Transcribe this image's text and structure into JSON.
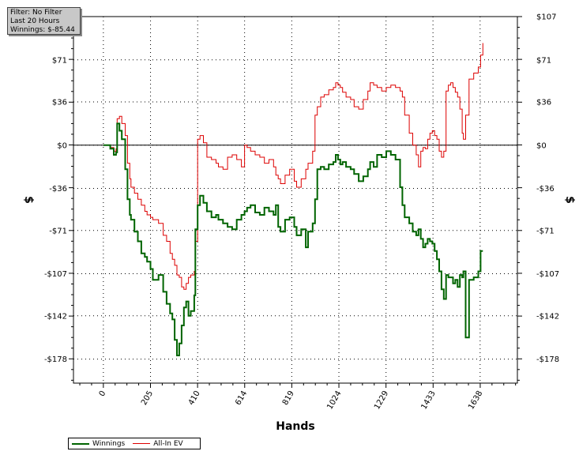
{
  "info": {
    "filter": "Filter: No Filter",
    "period": "Last  20 Hours",
    "winnings": "Winnings: $-85.44"
  },
  "colors": {
    "winnings": "#006400",
    "allin_ev": "#dd0000",
    "zero_line": "#000000"
  },
  "chart_data": {
    "type": "line",
    "title": "",
    "xlabel": "Hands",
    "ylabel": "$",
    "xlim": [
      -130,
      1800
    ],
    "ylim": [
      -198,
      107
    ],
    "x_ticks": [
      0,
      205,
      410,
      614,
      819,
      1024,
      1229,
      1433,
      1638
    ],
    "x_tick_labels": [
      "0",
      "205",
      "410",
      "614",
      "819",
      "1024",
      "1229",
      "1433",
      "1638"
    ],
    "y_ticks": [
      107,
      71,
      36,
      0,
      -36,
      -71,
      -107,
      -142,
      -178
    ],
    "y_tick_labels": [
      "$107",
      "$71",
      "$36",
      "$0",
      "-$36",
      "-$71",
      "-$107",
      "-$142",
      "-$178"
    ],
    "grid": true,
    "legend_position": "bottom-left",
    "series": [
      {
        "name": "Winnings",
        "x": [
          0,
          30,
          45,
          55,
          60,
          70,
          80,
          95,
          105,
          115,
          120,
          135,
          150,
          165,
          180,
          190,
          205,
          215,
          240,
          260,
          275,
          290,
          300,
          310,
          320,
          330,
          340,
          350,
          360,
          370,
          380,
          395,
          400,
          410,
          420,
          435,
          450,
          470,
          490,
          500,
          520,
          540,
          560,
          580,
          600,
          614,
          625,
          640,
          660,
          680,
          700,
          720,
          740,
          750,
          760,
          770,
          790,
          810,
          830,
          840,
          860,
          880,
          890,
          910,
          920,
          930,
          945,
          960,
          980,
          1000,
          1010,
          1020,
          1030,
          1040,
          1055,
          1075,
          1090,
          1110,
          1130,
          1150,
          1160,
          1175,
          1190,
          1210,
          1230,
          1250,
          1270,
          1290,
          1300,
          1310,
          1330,
          1345,
          1360,
          1370,
          1380,
          1390,
          1400,
          1410,
          1420,
          1430,
          1440,
          1450,
          1460,
          1470,
          1480,
          1490,
          1500,
          1510,
          1520,
          1530,
          1540,
          1550,
          1560,
          1565,
          1575,
          1590,
          1610,
          1630,
          1640,
          1650
        ],
        "values": [
          0,
          -3,
          -8,
          -6,
          18,
          12,
          5,
          -20,
          -45,
          -58,
          -62,
          -72,
          -80,
          -90,
          -93,
          -97,
          -103,
          -112,
          -108,
          -122,
          -132,
          -140,
          -145,
          -162,
          -175,
          -165,
          -150,
          -135,
          -130,
          -142,
          -138,
          -125,
          -70,
          -50,
          -42,
          -48,
          -55,
          -60,
          -58,
          -62,
          -65,
          -68,
          -70,
          -62,
          -58,
          -55,
          -52,
          -50,
          -56,
          -58,
          -52,
          -55,
          -58,
          -50,
          -68,
          -72,
          -62,
          -60,
          -68,
          -75,
          -70,
          -85,
          -72,
          -65,
          -45,
          -20,
          -18,
          -20,
          -16,
          -14,
          -8,
          -12,
          -16,
          -14,
          -18,
          -20,
          -24,
          -30,
          -26,
          -20,
          -14,
          -18,
          -8,
          -10,
          -5,
          -8,
          -12,
          -35,
          -50,
          -60,
          -65,
          -72,
          -75,
          -70,
          -78,
          -85,
          -82,
          -78,
          -80,
          -82,
          -88,
          -95,
          -105,
          -120,
          -128,
          -108,
          -110,
          -110,
          -115,
          -112,
          -118,
          -108,
          -110,
          -105,
          -160,
          -112,
          -110,
          -105,
          -88,
          -88
        ]
      },
      {
        "name": "All-In EV",
        "x": [
          0,
          30,
          45,
          55,
          60,
          70,
          80,
          95,
          105,
          115,
          120,
          135,
          150,
          165,
          180,
          190,
          205,
          215,
          240,
          260,
          275,
          290,
          300,
          310,
          320,
          330,
          340,
          350,
          360,
          370,
          380,
          395,
          400,
          410,
          420,
          435,
          450,
          470,
          490,
          500,
          520,
          540,
          560,
          580,
          600,
          614,
          625,
          640,
          660,
          680,
          700,
          720,
          740,
          750,
          760,
          770,
          790,
          810,
          830,
          840,
          860,
          880,
          890,
          910,
          920,
          930,
          945,
          960,
          980,
          1000,
          1010,
          1020,
          1030,
          1040,
          1055,
          1075,
          1090,
          1110,
          1130,
          1150,
          1160,
          1175,
          1190,
          1210,
          1230,
          1250,
          1270,
          1290,
          1300,
          1310,
          1330,
          1345,
          1360,
          1370,
          1380,
          1390,
          1400,
          1410,
          1420,
          1430,
          1440,
          1450,
          1460,
          1470,
          1480,
          1490,
          1500,
          1510,
          1520,
          1530,
          1540,
          1550,
          1560,
          1565,
          1575,
          1590,
          1610,
          1630,
          1640,
          1650
        ],
        "values": [
          0,
          -2,
          -5,
          -3,
          22,
          24,
          18,
          8,
          -15,
          -28,
          -35,
          -40,
          -45,
          -50,
          -55,
          -58,
          -60,
          -62,
          -65,
          -75,
          -80,
          -90,
          -95,
          -100,
          -108,
          -110,
          -118,
          -120,
          -115,
          -110,
          -108,
          -105,
          -80,
          5,
          8,
          2,
          -10,
          -12,
          -15,
          -18,
          -20,
          -10,
          -8,
          -12,
          -18,
          0,
          -2,
          -5,
          -8,
          -10,
          -15,
          -12,
          -18,
          -25,
          -28,
          -32,
          -25,
          -20,
          -30,
          -35,
          -28,
          -20,
          -15,
          -5,
          25,
          32,
          40,
          42,
          46,
          48,
          52,
          50,
          48,
          44,
          40,
          38,
          32,
          30,
          38,
          45,
          52,
          50,
          48,
          45,
          48,
          50,
          48,
          45,
          40,
          25,
          10,
          0,
          -8,
          -18,
          -5,
          -2,
          -3,
          5,
          10,
          12,
          8,
          5,
          -5,
          -10,
          -5,
          45,
          50,
          52,
          48,
          44,
          40,
          30,
          10,
          5,
          25,
          55,
          60,
          65,
          75,
          85
        ]
      }
    ]
  }
}
